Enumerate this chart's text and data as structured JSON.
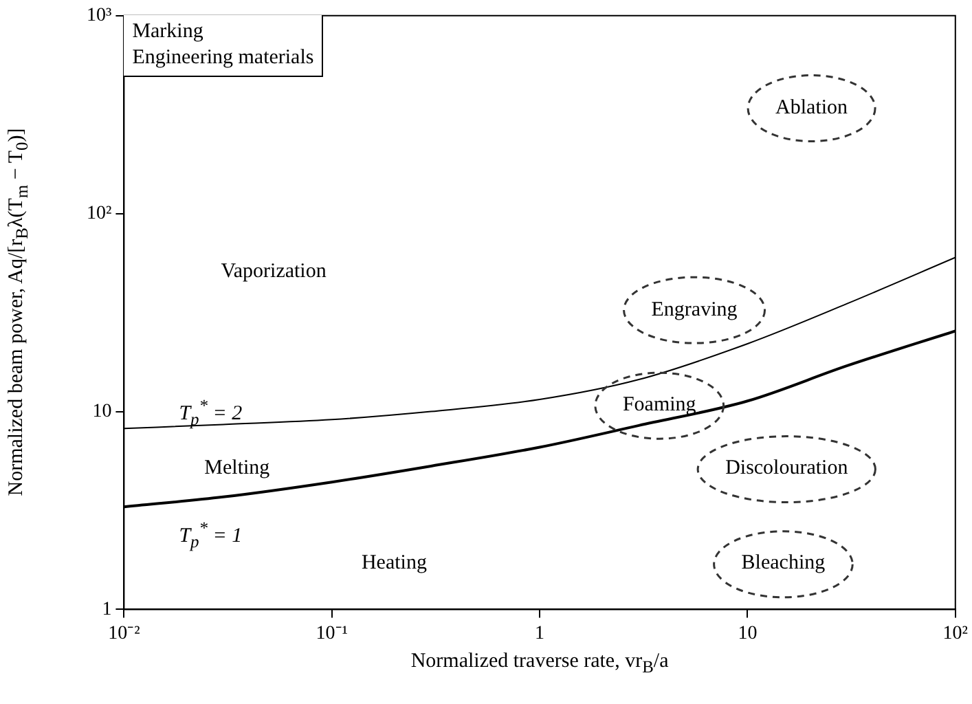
{
  "chart_data": {
    "type": "line",
    "xlabel": "Normalized traverse rate, vr$_{B}$/a",
    "ylabel": "Normalized beam power, Aq/[r$_{B}$λ(T$_{m}$ − T$_{0}$)]",
    "x": [
      0.01,
      0.03,
      0.1,
      0.3,
      1,
      3,
      10,
      30,
      100
    ],
    "series": [
      {
        "name": "T$_{p}$$^{*}$ = 2",
        "color": "#000000",
        "values": [
          8.2,
          8.6,
          9.1,
          10,
          11.5,
          14.5,
          22,
          35,
          60
        ]
      },
      {
        "name": "T$_{p}$$^{*}$ = 1",
        "color": "#000000",
        "values": [
          3.3,
          3.7,
          4.4,
          5.3,
          6.6,
          8.5,
          11.3,
          17,
          25.5
        ]
      }
    ],
    "log": "xy",
    "xlim": [
      0.01,
      100
    ],
    "ylim": [
      1,
      1000
    ],
    "xticks": [
      {
        "value": 0.01,
        "label": "10⁻²"
      },
      {
        "value": 0.1,
        "label": "10⁻¹"
      },
      1,
      10,
      {
        "value": 100,
        "label": "10²"
      }
    ],
    "yticks": [
      1,
      10,
      {
        "value": 100,
        "label": "10²"
      },
      {
        "value": 1000,
        "label": "10³"
      }
    ],
    "grid": false,
    "legend": false,
    "marker": "none",
    "line_style": "solid",
    "annotations": [
      "Marking",
      "Engineering materials",
      "Vaporization",
      "Melting",
      "Heating",
      "Ablation",
      "Engraving",
      "Foaming",
      "Discolouration",
      "Bleaching"
    ]
  }
}
